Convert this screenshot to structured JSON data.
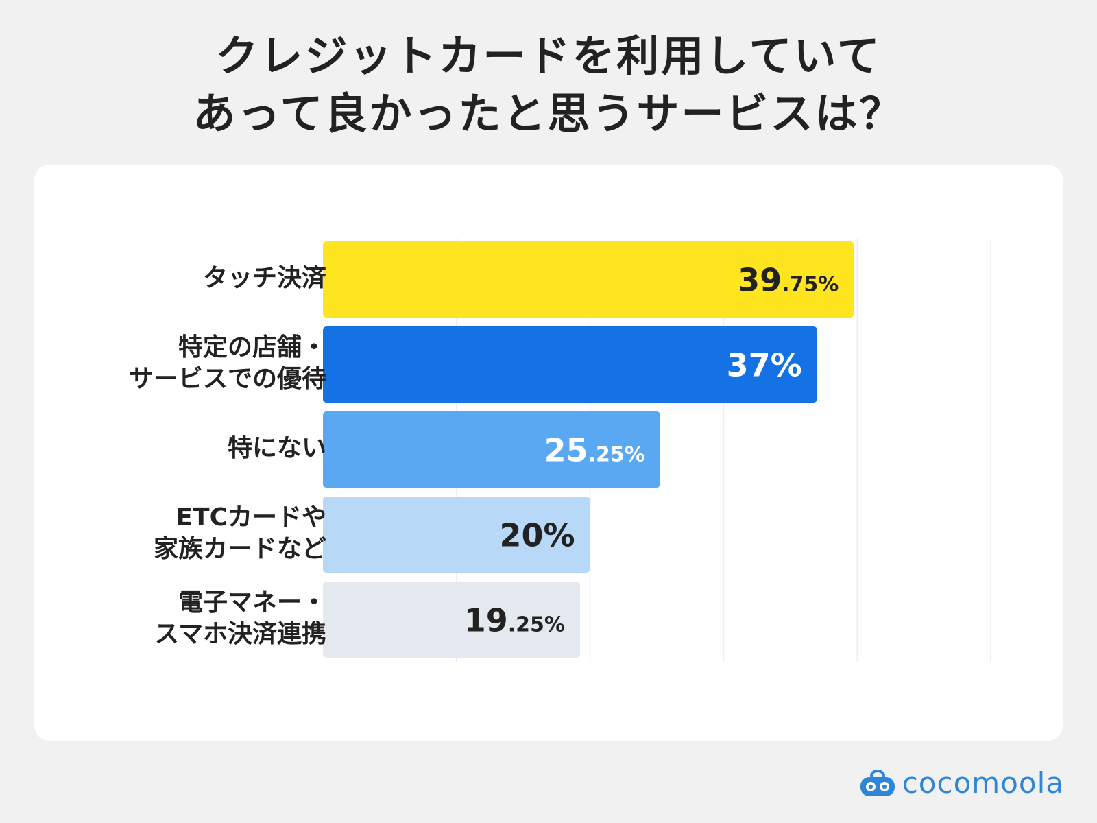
{
  "title": {
    "line1": "クレジットカードを利用していて",
    "line2": "あって良かったと思うサービスは？"
  },
  "chart_data": {
    "type": "bar",
    "orientation": "horizontal",
    "xlim": [
      0,
      50
    ],
    "grid": true,
    "categories": [
      [
        "タッチ決済"
      ],
      [
        "特定の店舗・",
        "サービスでの優待"
      ],
      [
        "特にない"
      ],
      [
        "ETCカードや",
        "家族カードなど"
      ],
      [
        "電子マネー・",
        "スマホ決済連携"
      ]
    ],
    "values": [
      39.75,
      37,
      25.25,
      20,
      19.25
    ],
    "data_labels": [
      {
        "main": "39",
        "decimal": ".75",
        "unit": "%"
      },
      {
        "main": "37",
        "decimal": "",
        "unit": "%"
      },
      {
        "main": "25",
        "decimal": ".25",
        "unit": "%"
      },
      {
        "main": "20",
        "decimal": "",
        "unit": "%"
      },
      {
        "main": "19",
        "decimal": ".25",
        "unit": "%"
      }
    ],
    "colors": [
      "#ffe420",
      "#1472e4",
      "#5ba8f2",
      "#b8d8f8",
      "#e4e9ef"
    ],
    "label_colors": [
      "#222222",
      "#ffffff",
      "#ffffff",
      "#222222",
      "#222222"
    ]
  },
  "logo": {
    "text": "cocomoola",
    "icon": "cocomoola-mascot-icon",
    "color": "#2f86d6"
  }
}
